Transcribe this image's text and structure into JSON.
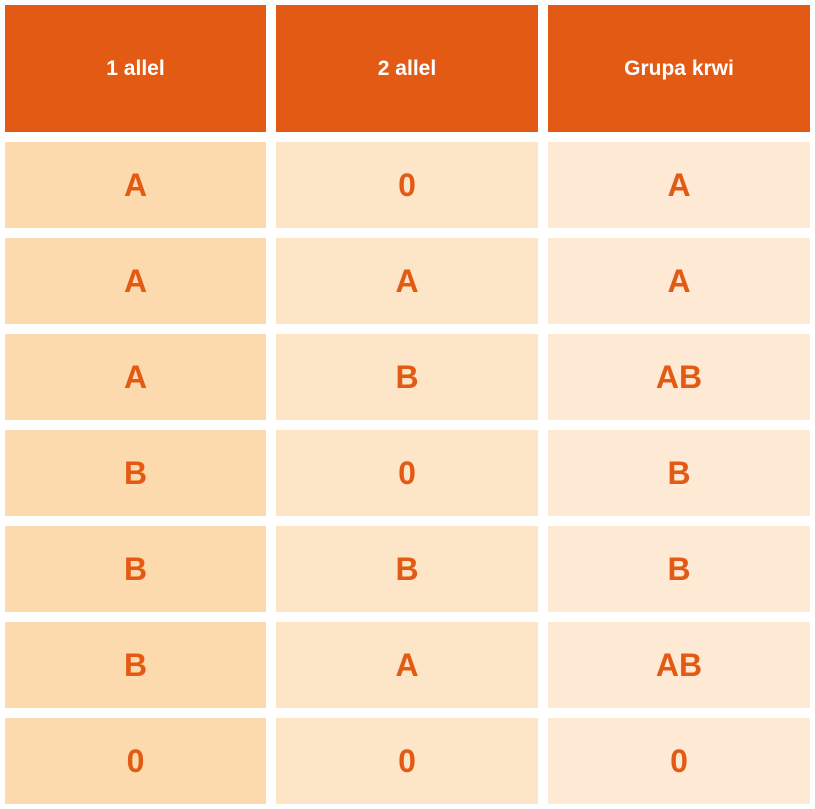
{
  "table": {
    "headers": [
      "1 allel",
      "2 allel",
      "Grupa krwi"
    ],
    "rows": [
      [
        "A",
        "0",
        "A"
      ],
      [
        "A",
        "A",
        "A"
      ],
      [
        "A",
        "B",
        "AB"
      ],
      [
        "B",
        "0",
        "B"
      ],
      [
        "B",
        "B",
        "B"
      ],
      [
        "B",
        "A",
        "AB"
      ],
      [
        "0",
        "0",
        "0"
      ]
    ]
  },
  "colors": {
    "header_bg": "#e35a14",
    "header_text": "#ffffff",
    "cell_text": "#e35a14",
    "col1_bg": "#fdd9ae",
    "col2_bg": "#fde5c8",
    "col3_bg": "#fee9d4"
  }
}
